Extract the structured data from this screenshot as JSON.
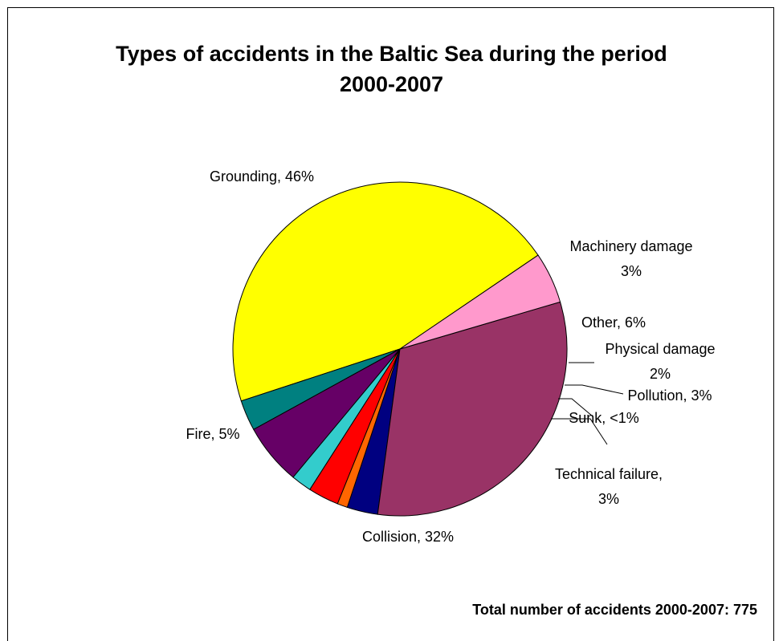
{
  "chart_data": {
    "type": "pie",
    "title": "Types of accidents in the Baltic Sea during the period 2000-2007",
    "title_lines": [
      "Types of accidents in the Baltic Sea during the period",
      "2000-2007"
    ],
    "slices": [
      {
        "name": "Grounding",
        "value": 46,
        "color": "#ffff00",
        "label_lines": [
          "Grounding, 46%"
        ]
      },
      {
        "name": "Machinery damage",
        "value": 3,
        "color": "#008080",
        "label_lines": [
          "Machinery damage",
          "3%"
        ]
      },
      {
        "name": "Other",
        "value": 6,
        "color": "#660066",
        "label_lines": [
          "Other, 6%"
        ]
      },
      {
        "name": "Physical damage",
        "value": 2,
        "color": "#33cccc",
        "label_lines": [
          "Physical damage",
          "2%"
        ]
      },
      {
        "name": "Pollution",
        "value": 3,
        "color": "#ff0000",
        "label_lines": [
          "Pollution, 3%"
        ]
      },
      {
        "name": "Sunk",
        "value": 1,
        "color": "#ff6600",
        "label_lines": [
          "Sunk, <1%"
        ]
      },
      {
        "name": "Technical failure",
        "value": 3,
        "color": "#000080",
        "label_lines": [
          "Technical failure,",
          "3%"
        ]
      },
      {
        "name": "Collision",
        "value": 32,
        "color": "#993366",
        "label_lines": [
          "Collision, 32%"
        ]
      },
      {
        "name": "Fire",
        "value": 5,
        "color": "#ff99cc",
        "label_lines": [
          "Fire, 5%"
        ]
      }
    ]
  },
  "footnote": "Total number of accidents 2000-2007: 775"
}
